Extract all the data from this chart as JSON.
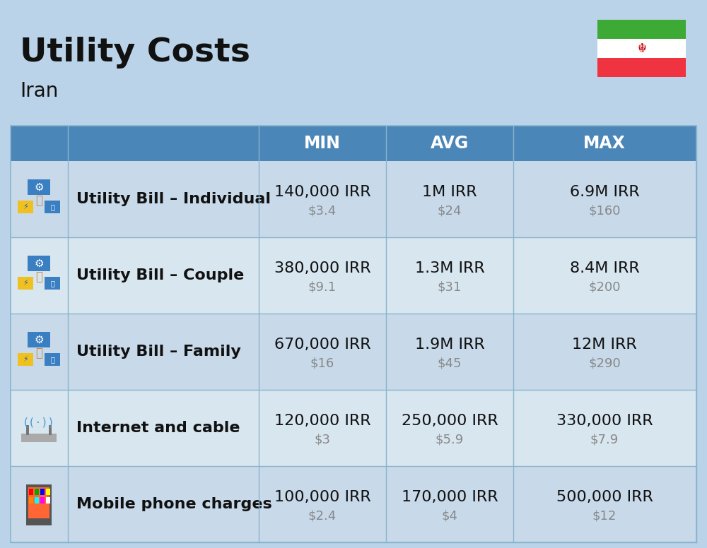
{
  "title": "Utility Costs",
  "subtitle": "Iran",
  "background_color": "#bad3e8",
  "header_color": "#4a86b8",
  "header_text_color": "#ffffff",
  "row_color_odd": "#c8daea",
  "row_color_even": "#d8e6f0",
  "divider_color": "#8ab4cc",
  "col_headers": [
    "MIN",
    "AVG",
    "MAX"
  ],
  "rows": [
    {
      "label": "Utility Bill – Individual",
      "min_irr": "140,000 IRR",
      "min_usd": "$3.4",
      "avg_irr": "1M IRR",
      "avg_usd": "$24",
      "max_irr": "6.9M IRR",
      "max_usd": "$160"
    },
    {
      "label": "Utility Bill – Couple",
      "min_irr": "380,000 IRR",
      "min_usd": "$9.1",
      "avg_irr": "1.3M IRR",
      "avg_usd": "$31",
      "max_irr": "8.4M IRR",
      "max_usd": "$200"
    },
    {
      "label": "Utility Bill – Family",
      "min_irr": "670,000 IRR",
      "min_usd": "$16",
      "avg_irr": "1.9M IRR",
      "avg_usd": "$45",
      "max_irr": "12M IRR",
      "max_usd": "$290"
    },
    {
      "label": "Internet and cable",
      "min_irr": "120,000 IRR",
      "min_usd": "$3",
      "avg_irr": "250,000 IRR",
      "avg_usd": "$5.9",
      "max_irr": "330,000 IRR",
      "max_usd": "$7.9"
    },
    {
      "label": "Mobile phone charges",
      "min_irr": "100,000 IRR",
      "min_usd": "$2.4",
      "avg_irr": "170,000 IRR",
      "avg_usd": "$4",
      "max_irr": "500,000 IRR",
      "max_usd": "$12"
    }
  ],
  "title_fontsize": 34,
  "subtitle_fontsize": 20,
  "label_fontsize": 16,
  "value_fontsize": 16,
  "usd_fontsize": 13,
  "header_fontsize": 17,
  "flag_green": "#3daa35",
  "flag_white": "#ffffff",
  "flag_red": "#ef3340",
  "usd_color": "#888888",
  "text_color": "#111111"
}
